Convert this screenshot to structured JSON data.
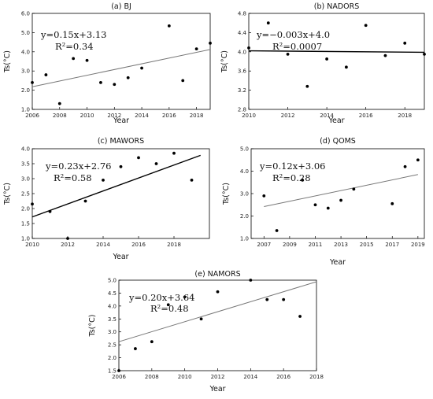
{
  "chart_data": [
    {
      "type": "scatter",
      "title": "(a) BJ",
      "xlabel": "Year",
      "ylabel": "Ts(°C)",
      "xlim": [
        2006,
        2019
      ],
      "ylim": [
        1.0,
        6.0
      ],
      "xticks": [
        "2006",
        "2008",
        "2010",
        "2012",
        "2014",
        "2016",
        "2018"
      ],
      "yticks": [
        "1.0",
        "2.0",
        "3.0",
        "4.0",
        "5.0",
        "6.0"
      ],
      "equation": "y=0.15x+3.13",
      "r2_label": "R²=0.34",
      "fit": {
        "x": [
          2006,
          2019
        ],
        "y": [
          2.18,
          4.12
        ]
      },
      "points": [
        {
          "x": 2006,
          "y": 2.4
        },
        {
          "x": 2007,
          "y": 2.8
        },
        {
          "x": 2008,
          "y": 1.3
        },
        {
          "x": 2009,
          "y": 3.65
        },
        {
          "x": 2010,
          "y": 3.55
        },
        {
          "x": 2011,
          "y": 2.4
        },
        {
          "x": 2012,
          "y": 2.3
        },
        {
          "x": 2013,
          "y": 2.65
        },
        {
          "x": 2014,
          "y": 3.15
        },
        {
          "x": 2016,
          "y": 5.35
        },
        {
          "x": 2017,
          "y": 2.5
        },
        {
          "x": 2018,
          "y": 4.15
        },
        {
          "x": 2019,
          "y": 4.45
        }
      ],
      "fit_color": "#777777"
    },
    {
      "type": "scatter",
      "title": "(b) NADORS",
      "xlabel": "Year",
      "ylabel": "Ts(°C)",
      "xlim": [
        2010,
        2019
      ],
      "ylim": [
        2.8,
        4.8
      ],
      "xticks": [
        "2010",
        "2012",
        "2014",
        "2016",
        "2018"
      ],
      "yticks": [
        "2.8",
        "3.2",
        "3.6",
        "4.0",
        "4.4",
        "4.8"
      ],
      "equation": "y=−0.003x+4.0",
      "r2_label": "R²=0.0007",
      "fit": {
        "x": [
          2010,
          2019
        ],
        "y": [
          4.02,
          3.99
        ]
      },
      "points": [
        {
          "x": 2010,
          "y": 4.08
        },
        {
          "x": 2011,
          "y": 4.6
        },
        {
          "x": 2012,
          "y": 3.95
        },
        {
          "x": 2013,
          "y": 3.28
        },
        {
          "x": 2014,
          "y": 3.85
        },
        {
          "x": 2015,
          "y": 3.68
        },
        {
          "x": 2016,
          "y": 4.55
        },
        {
          "x": 2017,
          "y": 3.92
        },
        {
          "x": 2018,
          "y": 4.18
        },
        {
          "x": 2019,
          "y": 3.95
        }
      ],
      "fit_color": "#000000"
    },
    {
      "type": "scatter",
      "title": "(c) MAWORS",
      "xlabel": "Year",
      "ylabel": "Ts(°C)",
      "xlim": [
        2010,
        2020
      ],
      "ylim": [
        1.0,
        4.0
      ],
      "xticks": [
        "2010",
        "2012",
        "2014",
        "2016",
        "2018"
      ],
      "yticks": [
        "1.0",
        "1.5",
        "2.0",
        "2.5",
        "3.0",
        "3.5",
        "4.0"
      ],
      "equation": "y=0.23x+2.76",
      "r2_label": "R²=0.58",
      "fit": {
        "x": [
          2010,
          2019.5
        ],
        "y": [
          1.72,
          3.78
        ]
      },
      "points": [
        {
          "x": 2010,
          "y": 2.15
        },
        {
          "x": 2011,
          "y": 1.9
        },
        {
          "x": 2012,
          "y": 1.0
        },
        {
          "x": 2013,
          "y": 2.25
        },
        {
          "x": 2014,
          "y": 2.95
        },
        {
          "x": 2015,
          "y": 3.4
        },
        {
          "x": 2016,
          "y": 3.7
        },
        {
          "x": 2017,
          "y": 3.5
        },
        {
          "x": 2018,
          "y": 3.85
        },
        {
          "x": 2019,
          "y": 2.95
        }
      ],
      "fit_color": "#000000"
    },
    {
      "type": "scatter",
      "title": "(d) QOMS",
      "xlabel": "Year",
      "ylabel": "Ts(°C)",
      "xlim": [
        2006,
        2019.5
      ],
      "ylim": [
        1.0,
        5.0
      ],
      "xticks": [
        "2007",
        "2009",
        "2011",
        "2013",
        "2015",
        "2017",
        "2019"
      ],
      "yticks": [
        "1.0",
        "2.0",
        "3.0",
        "4.0",
        "5.0"
      ],
      "equation": "y=0.12x+3.06",
      "r2_label": "R²=0.28",
      "fit": {
        "x": [
          2007,
          2019
        ],
        "y": [
          2.42,
          3.85
        ]
      },
      "points": [
        {
          "x": 2007,
          "y": 2.9
        },
        {
          "x": 2008,
          "y": 1.35
        },
        {
          "x": 2010,
          "y": 3.6
        },
        {
          "x": 2011,
          "y": 2.5
        },
        {
          "x": 2012,
          "y": 2.35
        },
        {
          "x": 2013,
          "y": 2.7
        },
        {
          "x": 2014,
          "y": 3.2
        },
        {
          "x": 2017,
          "y": 2.55
        },
        {
          "x": 2018,
          "y": 4.2
        },
        {
          "x": 2019,
          "y": 4.5
        }
      ],
      "fit_color": "#777777"
    },
    {
      "type": "scatter",
      "title": "(e) NAMORS",
      "xlabel": "Year",
      "ylabel": "Ts(°C)",
      "xlim": [
        2006,
        2018
      ],
      "ylim": [
        1.5,
        5.0
      ],
      "xticks": [
        "2006",
        "2008",
        "2010",
        "2012",
        "2014",
        "2016",
        "2018"
      ],
      "yticks": [
        "1.5",
        "2.0",
        "2.5",
        "3.0",
        "3.5",
        "4.0",
        "4.5",
        "5.0"
      ],
      "equation": "y=0.20x+3.64",
      "r2_label": "R²=0.48",
      "fit": {
        "x": [
          2006,
          2018
        ],
        "y": [
          2.62,
          4.94
        ]
      },
      "points": [
        {
          "x": 2006,
          "y": 1.5
        },
        {
          "x": 2007,
          "y": 2.35
        },
        {
          "x": 2008,
          "y": 2.62
        },
        {
          "x": 2009,
          "y": 4.05
        },
        {
          "x": 2010,
          "y": 4.35
        },
        {
          "x": 2011,
          "y": 3.5
        },
        {
          "x": 2012,
          "y": 4.55
        },
        {
          "x": 2014,
          "y": 5.0
        },
        {
          "x": 2015,
          "y": 4.25
        },
        {
          "x": 2016,
          "y": 4.25
        },
        {
          "x": 2017,
          "y": 3.6
        }
      ],
      "fit_color": "#777777"
    }
  ]
}
